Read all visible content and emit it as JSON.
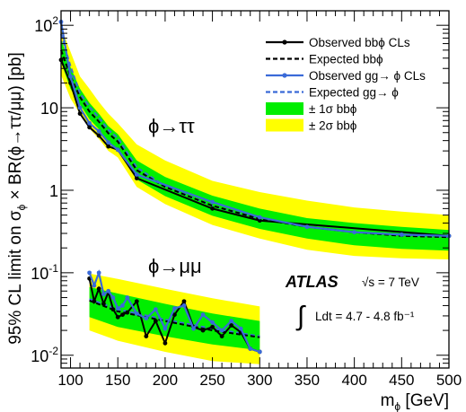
{
  "chart_data": {
    "type": "line",
    "xlabel": "m_ϕ [GeV]",
    "ylabel": "95% CL limit on σ_ϕ × BR(ϕ→ττ/μμ) [pb]",
    "xlim": [
      90,
      500
    ],
    "ylim": [
      0.007,
      150
    ],
    "y_scale": "log",
    "grid": false,
    "legend_position": "top-right",
    "x_ticks": [
      100,
      150,
      200,
      250,
      300,
      350,
      400,
      450,
      500
    ],
    "y_ticks": [
      {
        "value": 0.01,
        "label": "10^-2"
      },
      {
        "value": 0.1,
        "label": "10^-1"
      },
      {
        "value": 1,
        "label": "1"
      },
      {
        "value": 10,
        "label": "10"
      },
      {
        "value": 100,
        "label": "10^2"
      }
    ],
    "legend": [
      {
        "label": "Observed bbϕ CLs",
        "style": "solid-black-marker"
      },
      {
        "label": "Expected bbϕ",
        "style": "dashed-black"
      },
      {
        "label": "Observed gg→ ϕ CLs",
        "style": "solid-blue-marker"
      },
      {
        "label": "Expected gg→ ϕ",
        "style": "dashed-blue"
      },
      {
        "label": "± 1σ bbϕ",
        "style": "green-fill"
      },
      {
        "label": "± 2σ bbϕ",
        "style": "yellow-fill"
      }
    ],
    "annotations": {
      "tautau_label": "ϕ→ττ",
      "mumu_label": "ϕ→μμ",
      "atlas": "ATLAS",
      "sqrt_s": "√s = 7 TeV",
      "lumi": "∫ Ldt = 4.7 - 4.8 fb⁻¹"
    },
    "colors": {
      "black": "#000000",
      "blue": "#3a6ad8",
      "green": "#00ee00",
      "yellow": "#ffff00"
    },
    "tautau": {
      "band_x": [
        90,
        100,
        110,
        120,
        130,
        140,
        150,
        170,
        200,
        250,
        300,
        350,
        400,
        450,
        500
      ],
      "two_sigma_low": [
        25,
        13,
        8.4,
        5.6,
        4.2,
        3.0,
        2.5,
        1.1,
        0.68,
        0.38,
        0.26,
        0.19,
        0.16,
        0.15,
        0.145
      ],
      "two_sigma_high": [
        95,
        48,
        24,
        17,
        11.8,
        8.5,
        6.5,
        3.6,
        2.3,
        1.3,
        0.95,
        0.75,
        0.62,
        0.55,
        0.5
      ],
      "one_sigma_low": [
        36,
        17,
        11,
        7.3,
        5.5,
        3.9,
        3.2,
        1.35,
        0.85,
        0.49,
        0.34,
        0.26,
        0.215,
        0.195,
        0.185
      ],
      "one_sigma_high": [
        68,
        31,
        17,
        11.5,
        8.5,
        6.0,
        4.8,
        2.3,
        1.45,
        0.86,
        0.6,
        0.46,
        0.4,
        0.36,
        0.33
      ],
      "expected_bbphi": [
        50,
        24,
        13.5,
        9.0,
        6.8,
        4.9,
        3.9,
        1.75,
        1.1,
        0.65,
        0.45,
        0.36,
        0.31,
        0.28,
        0.27
      ],
      "observed_bbphi": {
        "x": [
          90,
          100,
          110,
          120,
          130,
          140,
          150,
          170,
          250,
          300,
          500
        ],
        "y": [
          38,
          20,
          8.5,
          5.8,
          4.6,
          3.4,
          3.1,
          1.4,
          0.6,
          0.43,
          0.28
        ]
      },
      "expected_ggphi": [
        78,
        32,
        15,
        10.3,
        7.6,
        5.4,
        4.3,
        1.9,
        1.12,
        0.65,
        0.45,
        0.36,
        0.31,
        0.285,
        0.27
      ],
      "observed_ggphi": {
        "x": [
          90,
          100,
          110,
          120,
          130,
          140,
          150,
          170,
          250,
          300,
          350,
          400,
          450,
          500
        ],
        "y": [
          110,
          24,
          10,
          6.5,
          5.2,
          3.8,
          3.1,
          1.55,
          0.72,
          0.47,
          0.36,
          0.31,
          0.29,
          0.28
        ]
      }
    },
    "mumu": {
      "band_x": [
        120,
        150,
        200,
        250,
        300
      ],
      "two_sigma_low": [
        0.02,
        0.015,
        0.011,
        0.0085,
        0.0078
      ],
      "two_sigma_high": [
        0.098,
        0.084,
        0.064,
        0.049,
        0.039
      ],
      "one_sigma_low": [
        0.029,
        0.022,
        0.017,
        0.0135,
        0.0115
      ],
      "one_sigma_high": [
        0.067,
        0.056,
        0.042,
        0.032,
        0.026
      ],
      "expected_bbphi": [
        0.046,
        0.034,
        0.026,
        0.02,
        0.0165
      ],
      "expected_ggphi": [
        0.048,
        0.036,
        0.027,
        0.021,
        0.017
      ],
      "observed_bbphi": {
        "x": [
          120,
          125,
          130,
          135,
          140,
          145,
          150,
          155,
          160,
          170,
          180,
          190,
          200,
          210,
          220,
          230,
          240,
          250,
          260,
          270,
          280,
          290,
          300
        ],
        "y": [
          0.085,
          0.045,
          0.064,
          0.042,
          0.058,
          0.036,
          0.029,
          0.031,
          0.033,
          0.045,
          0.017,
          0.026,
          0.014,
          0.031,
          0.045,
          0.022,
          0.02,
          0.022,
          0.017,
          0.023,
          0.019,
          0.012,
          0.011
        ]
      },
      "observed_ggphi": {
        "x": [
          120,
          125,
          130,
          135,
          140,
          145,
          150,
          155,
          160,
          170,
          180,
          190,
          200,
          210,
          220,
          230,
          240,
          250,
          260,
          270,
          280,
          290,
          300
        ],
        "y": [
          0.1,
          0.07,
          0.1,
          0.055,
          0.06,
          0.05,
          0.037,
          0.04,
          0.05,
          0.032,
          0.028,
          0.036,
          0.021,
          0.037,
          0.04,
          0.021,
          0.031,
          0.025,
          0.02,
          0.026,
          0.021,
          0.012,
          0.011
        ]
      }
    }
  }
}
